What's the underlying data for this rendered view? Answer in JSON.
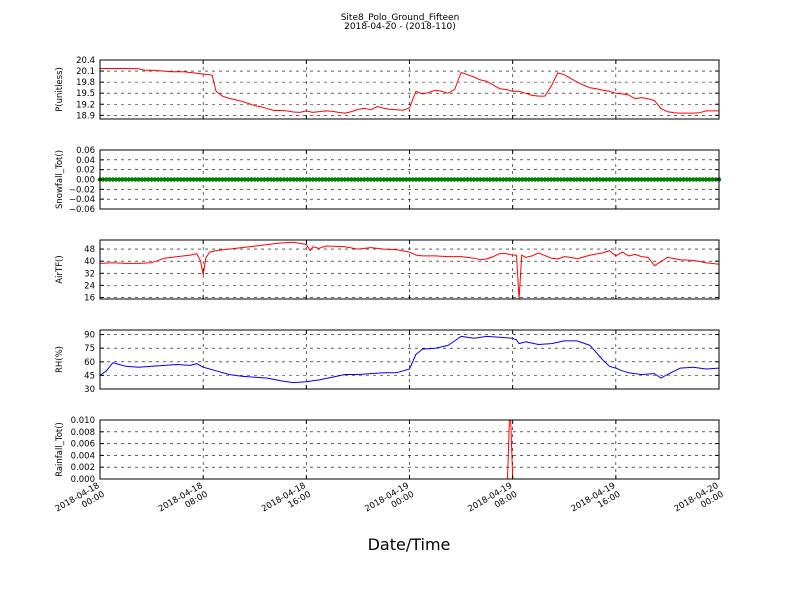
{
  "figure": {
    "title": "Site8_Polo_Ground_Fifteen",
    "subtitle": "2018-04-20 - (2018-110)",
    "xlabel": "Date/Time",
    "x_ticks": [
      {
        "x": 0,
        "line1": "2018-04-18",
        "line2": "00:00"
      },
      {
        "x": 8,
        "line1": "2018-04-18",
        "line2": "08:00"
      },
      {
        "x": 16,
        "line1": "2018-04-18",
        "line2": "16:00"
      },
      {
        "x": 24,
        "line1": "2018-04-19",
        "line2": "00:00"
      },
      {
        "x": 32,
        "line1": "2018-04-19",
        "line2": "08:00"
      },
      {
        "x": 40,
        "line1": "2018-04-19",
        "line2": "16:00"
      },
      {
        "x": 48,
        "line1": "2018-04-20",
        "line2": "00:00"
      }
    ]
  },
  "chart_data": [
    {
      "type": "line",
      "ylabel": "P(unitless)",
      "xlim": [
        0,
        48
      ],
      "ylim": [
        18.8,
        20.4
      ],
      "yticks": [
        18.9,
        19.2,
        19.5,
        19.8,
        20.1,
        20.4
      ],
      "ytick_labels": [
        "18.9",
        "19.2",
        "19.5",
        "19.8",
        "20.1",
        "20.4"
      ],
      "grid": true,
      "series": [
        {
          "color": "#ff0000",
          "x": [
            0,
            1,
            2,
            3,
            3.5,
            4,
            5,
            5.5,
            6,
            6.5,
            7,
            7.5,
            8,
            8.5,
            8.7,
            9,
            9.5,
            10,
            10.5,
            11,
            11.5,
            12,
            12.5,
            13,
            13.5,
            14,
            14.5,
            15,
            15.5,
            16,
            16.5,
            17,
            17.5,
            18,
            18.5,
            19,
            19.5,
            20,
            20.5,
            21,
            21.5,
            22,
            22.5,
            23,
            23.5,
            24,
            24.5,
            25,
            25.5,
            26,
            26.5,
            27,
            27.5,
            28,
            28.5,
            29,
            29.5,
            30,
            30.5,
            31,
            31.5,
            32,
            32.5,
            33,
            33.5,
            34,
            34.5,
            35,
            35.5,
            36,
            36.5,
            37,
            37.5,
            38,
            38.5,
            39,
            39.5,
            40,
            40.5,
            41,
            41.5,
            42,
            42.5,
            43,
            43.5,
            44,
            44.5,
            45,
            45.5,
            46,
            46.5,
            47,
            47.5,
            48
          ],
          "y": [
            20.17,
            20.17,
            20.17,
            20.16,
            20.12,
            20.12,
            20.1,
            20.08,
            20.08,
            20.08,
            20.06,
            20.04,
            20.02,
            20.0,
            19.98,
            19.55,
            19.42,
            19.36,
            19.32,
            19.28,
            19.22,
            19.16,
            19.13,
            19.08,
            19.03,
            19.03,
            19.02,
            18.99,
            18.98,
            19.02,
            18.98,
            19.0,
            19.02,
            19.01,
            18.98,
            18.96,
            19.0,
            19.06,
            19.09,
            19.05,
            19.14,
            19.09,
            19.06,
            19.05,
            19.04,
            19.1,
            19.55,
            19.48,
            19.52,
            19.58,
            19.55,
            19.5,
            19.6,
            20.06,
            20.0,
            19.94,
            19.86,
            19.82,
            19.72,
            19.62,
            19.6,
            19.55,
            19.55,
            19.5,
            19.44,
            19.42,
            19.42,
            19.7,
            20.05,
            20.0,
            19.9,
            19.8,
            19.72,
            19.65,
            19.62,
            19.58,
            19.55,
            19.5,
            19.48,
            19.45,
            19.35,
            19.38,
            19.35,
            19.3,
            19.08,
            19.0,
            18.97,
            18.96,
            18.96,
            18.96,
            18.97,
            19.02,
            19.02,
            19.02
          ]
        }
      ]
    },
    {
      "type": "scatter",
      "ylabel": "Snowfall_Tot()",
      "xlim": [
        0,
        48
      ],
      "ylim": [
        -0.06,
        0.06
      ],
      "yticks": [
        -0.06,
        -0.04,
        -0.02,
        0.0,
        0.02,
        0.04,
        0.06
      ],
      "ytick_labels": [
        "−0.06",
        "−0.04",
        "−0.02",
        "0.00",
        "0.02",
        "0.04",
        "0.06"
      ],
      "grid": true,
      "series": [
        {
          "color": "#008000",
          "x_start": 0,
          "x_end": 48,
          "count": 193,
          "value": 0.0
        }
      ]
    },
    {
      "type": "line",
      "ylabel": "AirTF()",
      "xlim": [
        0,
        48
      ],
      "ylim": [
        15,
        54
      ],
      "yticks": [
        16,
        24,
        32,
        40,
        48
      ],
      "ytick_labels": [
        "16",
        "24",
        "32",
        "40",
        "48"
      ],
      "grid": true,
      "series": [
        {
          "color": "#ff0000",
          "x": [
            0,
            1,
            2,
            3,
            4,
            5,
            6,
            7,
            7.5,
            7.8,
            8,
            8.2,
            8.5,
            9,
            10,
            11,
            12,
            13,
            14,
            15,
            16,
            16.3,
            16.5,
            17,
            17.5,
            18,
            19,
            20,
            21,
            22,
            23,
            24,
            24.5,
            25,
            26,
            27,
            28,
            29,
            29.5,
            30,
            30.5,
            31,
            31.5,
            32,
            32.3,
            32.5,
            32.7,
            33,
            33.5,
            34,
            35,
            35.5,
            36,
            36.5,
            37,
            38,
            39,
            39.5,
            40,
            40.5,
            41,
            41.5,
            42,
            42.5,
            43,
            44,
            45,
            46,
            47,
            48
          ],
          "y": [
            38.5,
            39,
            38.5,
            38.5,
            39,
            42,
            43,
            44,
            45,
            40,
            31,
            42,
            46,
            47,
            48,
            49,
            50,
            51,
            52,
            52.5,
            51,
            47,
            49.5,
            48.5,
            50,
            50,
            49.5,
            48,
            49,
            48,
            47.5,
            46,
            44,
            43.5,
            43.5,
            43,
            43,
            42,
            41,
            41.5,
            43,
            45,
            45,
            44,
            44,
            15,
            44,
            42.5,
            43.5,
            45.5,
            42,
            41.5,
            43,
            42.5,
            41.5,
            44,
            45.5,
            47,
            43.5,
            46,
            43.5,
            44.5,
            43,
            42.5,
            37,
            42.5,
            41,
            40.5,
            39,
            38
          ]
        }
      ]
    },
    {
      "type": "line",
      "ylabel": "RH(%)",
      "xlim": [
        0,
        48
      ],
      "ylim": [
        30,
        95
      ],
      "yticks": [
        30,
        45,
        60,
        75,
        90
      ],
      "ytick_labels": [
        "30",
        "45",
        "60",
        "75",
        "90"
      ],
      "grid": true,
      "series": [
        {
          "color": "#0000ff",
          "x": [
            0,
            0.5,
            1,
            1.5,
            2,
            3,
            4,
            5,
            6,
            7,
            7.5,
            8,
            8.5,
            9,
            10,
            11,
            12,
            13,
            14,
            15,
            16,
            17,
            18,
            19,
            20,
            21,
            22,
            23,
            24,
            24.5,
            25,
            26,
            27,
            28,
            29,
            30,
            31,
            32,
            32.3,
            32.5,
            33,
            34,
            35,
            36,
            37,
            38,
            39,
            39.5,
            40,
            40.5,
            41,
            42,
            43,
            43.5,
            44,
            45,
            46,
            47,
            48
          ],
          "y": [
            45,
            50,
            59,
            57,
            55,
            54,
            55,
            56,
            57,
            56,
            58,
            54,
            52,
            50,
            46,
            44,
            43,
            42,
            39,
            37,
            38,
            40,
            43,
            46,
            46,
            47,
            48,
            48,
            52,
            68,
            74,
            75,
            78,
            88,
            86,
            88,
            87,
            86,
            84,
            80,
            82,
            79,
            80,
            83,
            83,
            78,
            62,
            55,
            53,
            50,
            48,
            46,
            47,
            42,
            46,
            53,
            54,
            52,
            53
          ]
        }
      ]
    },
    {
      "type": "line",
      "ylabel": "Rainfall_Tot()",
      "xlim": [
        0,
        48
      ],
      "ylim": [
        0,
        0.01
      ],
      "yticks": [
        0,
        0.002,
        0.004,
        0.006,
        0.008,
        0.01
      ],
      "ytick_labels": [
        "0.000",
        "0.002",
        "0.004",
        "0.006",
        "0.008",
        "0.010"
      ],
      "grid": true,
      "series": [
        {
          "color": "#ff0000",
          "x": [
            0,
            31.6,
            31.75,
            31.85,
            32.0,
            48
          ],
          "y": [
            0,
            0,
            0.01,
            0.01,
            0,
            0
          ]
        }
      ]
    }
  ]
}
